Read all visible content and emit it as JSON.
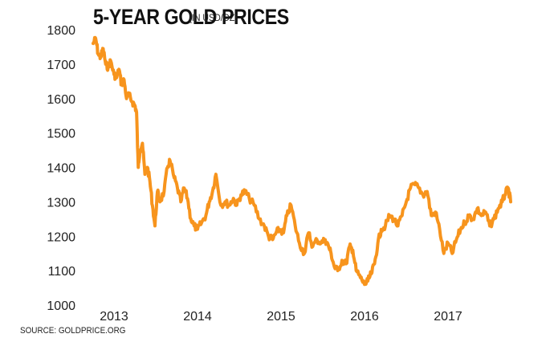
{
  "chart_data": {
    "type": "line",
    "title": "5-YEAR GOLD PRICES",
    "subtitle": "[IN USD/OZ]",
    "source": "SOURCE: GOLDPRICE.ORG",
    "xlabel": "",
    "ylabel": "",
    "ylim": [
      1000,
      1800
    ],
    "xlim": [
      2012.75,
      2017.75
    ],
    "yticks": [
      "1000",
      "1100",
      "1200",
      "1300",
      "1400",
      "1500",
      "1600",
      "1700",
      "1800"
    ],
    "xticks": [
      "2013",
      "2014",
      "2015",
      "2016",
      "2017"
    ],
    "grid": false,
    "legend": "none",
    "line_color": "#f7941d",
    "series": [
      {
        "x": [
          2012.75,
          2012.78,
          2012.81,
          2012.84,
          2012.87,
          2012.9,
          2012.93,
          2012.96,
          2013.0,
          2013.03,
          2013.06,
          2013.09,
          2013.12,
          2013.15,
          2013.18,
          2013.22,
          2013.25,
          2013.27,
          2013.29,
          2013.31,
          2013.34,
          2013.37,
          2013.4,
          2013.43,
          2013.46,
          2013.49,
          2013.52,
          2013.55,
          2013.6,
          2013.64,
          2013.67,
          2013.72,
          2013.76,
          2013.8,
          2013.84,
          2013.88,
          2013.92,
          2013.96,
          2014.0,
          2014.05,
          2014.1,
          2014.14,
          2014.18,
          2014.22,
          2014.28,
          2014.33,
          2014.38,
          2014.43,
          2014.47,
          2014.52,
          2014.57,
          2014.62,
          2014.68,
          2014.74,
          2014.8,
          2014.85,
          2014.9,
          2014.94,
          2014.98,
          2015.03,
          2015.07,
          2015.12,
          2015.17,
          2015.22,
          2015.28,
          2015.33,
          2015.38,
          2015.43,
          2015.48,
          2015.53,
          2015.57,
          2015.6,
          2015.64,
          2015.68,
          2015.73,
          2015.78,
          2015.82,
          2015.86,
          2015.9,
          2015.95,
          2016.0,
          2016.04,
          2016.08,
          2016.12,
          2016.16,
          2016.2,
          2016.25,
          2016.3,
          2016.35,
          2016.4,
          2016.45,
          2016.5,
          2016.55,
          2016.6,
          2016.65,
          2016.7,
          2016.75,
          2016.8,
          2016.85,
          2016.9,
          2016.95,
          2017.0,
          2017.05,
          2017.1,
          2017.15,
          2017.2,
          2017.25,
          2017.3,
          2017.35,
          2017.4,
          2017.45,
          2017.5,
          2017.55,
          2017.6,
          2017.65,
          2017.68,
          2017.72,
          2017.75
        ],
        "y": [
          1760,
          1775,
          1730,
          1720,
          1745,
          1700,
          1690,
          1710,
          1670,
          1660,
          1685,
          1640,
          1655,
          1600,
          1610,
          1590,
          1580,
          1560,
          1400,
          1450,
          1470,
          1380,
          1400,
          1360,
          1290,
          1230,
          1330,
          1300,
          1330,
          1400,
          1420,
          1370,
          1340,
          1300,
          1340,
          1310,
          1250,
          1230,
          1220,
          1240,
          1260,
          1300,
          1330,
          1380,
          1290,
          1300,
          1290,
          1310,
          1290,
          1320,
          1330,
          1310,
          1290,
          1250,
          1230,
          1200,
          1190,
          1210,
          1220,
          1210,
          1260,
          1290,
          1230,
          1180,
          1150,
          1210,
          1170,
          1190,
          1180,
          1190,
          1170,
          1150,
          1110,
          1100,
          1130,
          1120,
          1170,
          1160,
          1100,
          1080,
          1060,
          1070,
          1090,
          1120,
          1180,
          1220,
          1230,
          1260,
          1250,
          1230,
          1260,
          1300,
          1340,
          1350,
          1340,
          1320,
          1330,
          1260,
          1270,
          1220,
          1150,
          1180,
          1150,
          1190,
          1220,
          1240,
          1260,
          1250,
          1280,
          1260,
          1270,
          1230,
          1250,
          1280,
          1300,
          1320,
          1340,
          1300
        ]
      }
    ]
  }
}
